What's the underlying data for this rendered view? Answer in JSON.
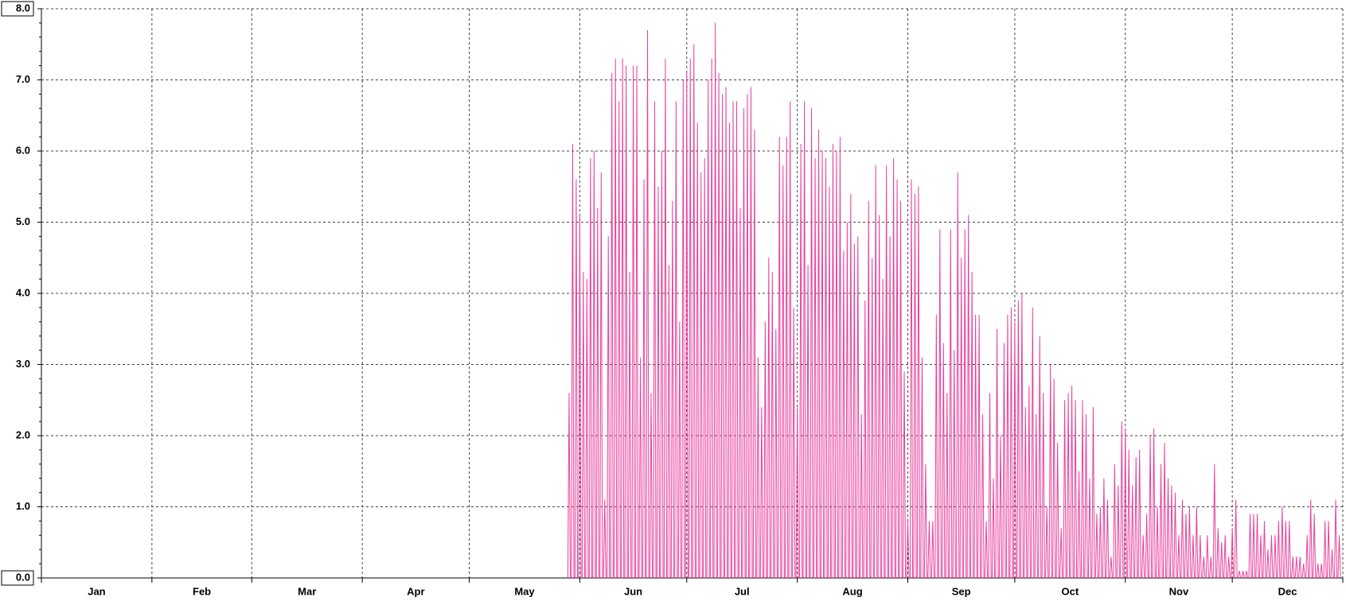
{
  "chart_data": {
    "type": "spike",
    "grid": true,
    "xlim": [
      0,
      365
    ],
    "xticks": [
      0,
      31,
      59,
      90,
      120,
      151,
      181,
      212,
      243,
      273,
      304,
      334,
      365
    ],
    "categories": [
      "Jan",
      "Feb",
      "Mar",
      "Apr",
      "May",
      "Jun",
      "Jul",
      "Aug",
      "Sep",
      "Oct",
      "Nov",
      "Dec"
    ],
    "ylim": [
      0,
      8
    ],
    "yticks": [
      {
        "value": 0,
        "label": "0.0"
      },
      {
        "value": 1,
        "label": "1.0"
      },
      {
        "value": 2,
        "label": "2.0"
      },
      {
        "value": 3,
        "label": "3.0"
      },
      {
        "value": 4,
        "label": "4.0"
      },
      {
        "value": 5,
        "label": "5.0"
      },
      {
        "value": 6,
        "label": "6.0"
      },
      {
        "value": 7,
        "label": "7.0"
      },
      {
        "value": 8,
        "label": "8.0"
      }
    ],
    "color": "#e8409a",
    "x": [
      148,
      149,
      150,
      151,
      152,
      153,
      154,
      155,
      156,
      157,
      158,
      159,
      160,
      161,
      162,
      163,
      164,
      165,
      166,
      167,
      168,
      169,
      170,
      171,
      172,
      173,
      174,
      175,
      176,
      177,
      178,
      179,
      180,
      181,
      182,
      183,
      184,
      185,
      186,
      187,
      188,
      189,
      190,
      191,
      192,
      193,
      194,
      195,
      196,
      197,
      198,
      199,
      200,
      201,
      202,
      203,
      204,
      205,
      206,
      207,
      208,
      209,
      210,
      211,
      212,
      213,
      214,
      215,
      216,
      217,
      218,
      219,
      220,
      221,
      222,
      223,
      224,
      225,
      226,
      227,
      228,
      229,
      230,
      231,
      232,
      233,
      234,
      235,
      236,
      237,
      238,
      239,
      240,
      241,
      242,
      243,
      244,
      245,
      246,
      247,
      248,
      249,
      250,
      251,
      252,
      253,
      254,
      255,
      256,
      257,
      258,
      259,
      260,
      261,
      262,
      263,
      264,
      265,
      266,
      267,
      268,
      269,
      270,
      271,
      272,
      273,
      274,
      275,
      276,
      277,
      278,
      279,
      280,
      281,
      282,
      283,
      284,
      285,
      286,
      287,
      288,
      289,
      290,
      291,
      292,
      293,
      294,
      295,
      296,
      297,
      298,
      299,
      300,
      301,
      302,
      303,
      304,
      305,
      306,
      307,
      308,
      309,
      310,
      311,
      312,
      313,
      314,
      315,
      316,
      317,
      318,
      319,
      320,
      321,
      322,
      323,
      324,
      325,
      326,
      327,
      328,
      329,
      330,
      331,
      332,
      333,
      334,
      335,
      336,
      337,
      338,
      339,
      340,
      341,
      342,
      343,
      344,
      345,
      346,
      347,
      348,
      349,
      350,
      351,
      352,
      353,
      354,
      355,
      356,
      357,
      358,
      359,
      360,
      361,
      362,
      363,
      364
    ],
    "values": [
      2.6,
      6.1,
      5.6,
      5.1,
      4.3,
      4.2,
      5.9,
      6.0,
      5.2,
      5.7,
      1.1,
      4.8,
      7.1,
      7.3,
      6.7,
      7.3,
      7.2,
      4.3,
      7.2,
      7.2,
      3.1,
      5.6,
      7.7,
      2.6,
      6.7,
      5.5,
      6.0,
      7.3,
      4.4,
      5.3,
      6.7,
      3.6,
      7.0,
      7.1,
      7.3,
      7.5,
      6.4,
      5.7,
      5.9,
      7.0,
      7.3,
      7.8,
      7.1,
      6.8,
      6.9,
      6.4,
      6.7,
      6.7,
      5.2,
      6.6,
      6.8,
      6.9,
      6.3,
      3.1,
      2.4,
      3.6,
      4.5,
      4.3,
      3.5,
      6.2,
      5.8,
      6.2,
      6.7,
      3.8,
      2.4,
      6.1,
      6.7,
      4.4,
      6.6,
      5.9,
      6.3,
      6.0,
      5.9,
      5.5,
      6.1,
      6.0,
      6.2,
      4.6,
      5.0,
      5.4,
      4.7,
      4.8,
      2.3,
      3.9,
      5.3,
      4.5,
      5.8,
      5.1,
      4.2,
      5.8,
      4.8,
      5.9,
      5.6,
      5.3,
      2.9,
      0.8,
      5.6,
      5.4,
      5.5,
      3.1,
      1.6,
      0.8,
      0.8,
      3.7,
      4.9,
      3.3,
      2.6,
      4.9,
      3.2,
      5.7,
      4.5,
      4.9,
      5.1,
      4.3,
      3.7,
      3.7,
      2.3,
      0.8,
      2.6,
      1.4,
      3.5,
      2.0,
      3.3,
      3.7,
      3.8,
      3.6,
      3.9,
      4.0,
      2.4,
      2.7,
      3.8,
      2.3,
      3.4,
      2.6,
      1.0,
      3.0,
      2.8,
      1.9,
      0.7,
      2.5,
      2.6,
      2.7,
      2.5,
      1.5,
      2.5,
      2.3,
      1.4,
      2.4,
      0.9,
      1.0,
      1.4,
      1.1,
      0.3,
      1.6,
      1.3,
      2.2,
      2.1,
      1.8,
      1.3,
      1.7,
      1.8,
      0.6,
      0.9,
      2.0,
      2.1,
      1.0,
      1.6,
      1.9,
      1.4,
      1.3,
      1.2,
      0.6,
      1.1,
      0.9,
      1.0,
      0.6,
      1.0,
      0.6,
      0.3,
      0.6,
      0.3,
      1.6,
      0.7,
      0.5,
      0.6,
      0.3,
      0.7,
      1.1,
      0.1,
      0.1,
      0.1,
      0.9,
      0.9,
      0.9,
      0.6,
      0.8,
      0.4,
      0.6,
      0.6,
      0.8,
      1.0,
      0.8,
      0.8,
      0.3,
      0.3,
      0.3,
      0.2,
      0.6,
      1.1,
      0.9,
      0.2,
      0.2,
      0.8,
      0.8,
      0.4,
      1.1,
      0.6
    ]
  }
}
